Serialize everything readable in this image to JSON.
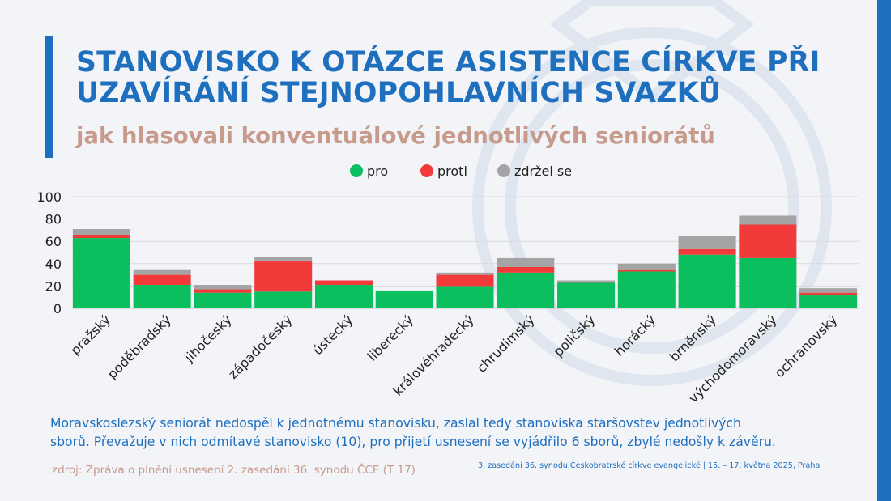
{
  "header": {
    "title_lines": [
      "STANOVISKO K OTÁZCE ASISTENCE CÍRKVE PŘI",
      "UZAVÍRÁNÍ STEJNOPOHLAVNÍCH SVAZKŮ"
    ],
    "subtitle": "jak hlasovali konventuálové jednotlivých seniorátů"
  },
  "colors": {
    "brand_blue": "#1f6fbf",
    "accent_rose": "#c79a8b",
    "pro": "#0bbf5f",
    "proti": "#f23a3a",
    "zdrzel": "#a4a4a4",
    "grid": "#d9d9de",
    "background": "#f3f4f8"
  },
  "chart_data": {
    "type": "bar",
    "stacked": true,
    "categories": [
      "pražský",
      "poděbradský",
      "jihočeský",
      "západočeský",
      "ústecký",
      "liberecký",
      "královéhradecký",
      "chrudimský",
      "poličský",
      "horácký",
      "brněnský",
      "východomoravský",
      "ochranovský"
    ],
    "series": [
      {
        "name": "pro",
        "values": [
          63,
          21,
          14,
          15,
          21,
          16,
          20,
          32,
          23,
          33,
          48,
          45,
          12
        ]
      },
      {
        "name": "proti",
        "values": [
          3,
          9,
          3,
          27,
          4,
          0,
          10,
          5,
          1,
          2,
          5,
          30,
          2
        ]
      },
      {
        "name": "zdržel se",
        "values": [
          5,
          5,
          4,
          4,
          0,
          0,
          2,
          8,
          1,
          5,
          12,
          8,
          4
        ]
      }
    ],
    "y_ticks": [
      "0",
      "20",
      "40",
      "60",
      "80",
      "100"
    ],
    "ylim": [
      0,
      100
    ],
    "grid": true,
    "legend_position": "top-center",
    "xlabel": "",
    "ylabel": ""
  },
  "note_lines": [
    "Moravskoslezský seniorát nedospěl k jednotnému stanovisku, zaslal tedy stanoviska staršovstev jednotlivých",
    "sborů. Převažuje v nich odmítavé stanovisko (10), pro přijetí usnesení se vyjádřilo 6 sborů, zbylé nedošly k závěru."
  ],
  "footer": {
    "source": "zdroj: Zpráva o plnění usnesení 2. zasedání 36. synodu ČCE (T 17)",
    "event": "3. zasedání 36. synodu Českobratrské církve evangelické | 15. – 17. května 2025, Praha"
  }
}
